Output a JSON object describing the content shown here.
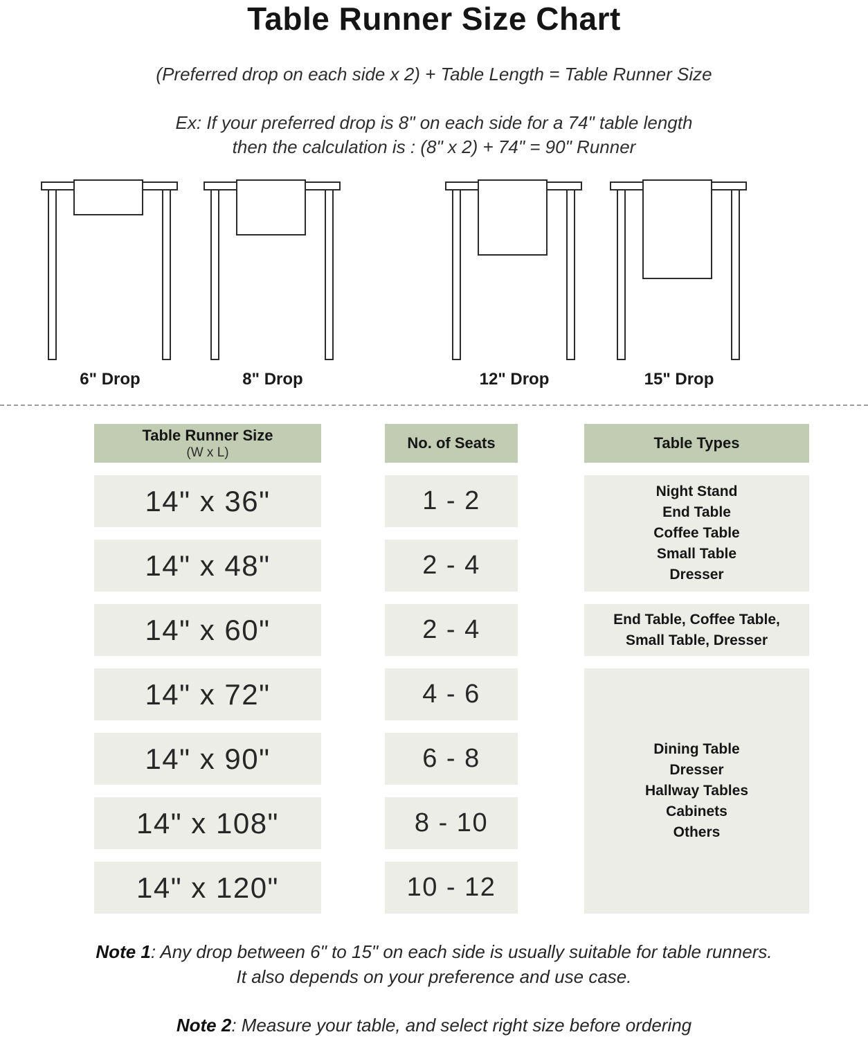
{
  "title": "Table Runner Size Chart",
  "formula": "(Preferred drop on each side x 2) + Table Length = Table Runner Size",
  "example": {
    "line1": "Ex: If your preferred drop is 8\" on each side for a 74\" table length",
    "line2": "then the calculation is : (8\" x 2) + 74\" = 90\" Runner"
  },
  "diagrams": [
    {
      "label": "6\" Drop"
    },
    {
      "label": "8\" Drop"
    },
    {
      "label": "12\" Drop"
    },
    {
      "label": "15\" Drop"
    }
  ],
  "table": {
    "columns": [
      {
        "header": "Table Runner Size",
        "subheader": "(W x L)"
      },
      {
        "header": "No. of Seats"
      },
      {
        "header": "Table Types"
      }
    ],
    "sizes": [
      "14\" x 36\"",
      "14\" x 48\"",
      "14\" x 60\"",
      "14\" x 72\"",
      "14\" x 90\"",
      "14\" x 108\"",
      "14\" x 120\""
    ],
    "seats": [
      "1 - 2",
      "2 - 4",
      "2 - 4",
      "4 - 6",
      "6 - 8",
      "8 - 10",
      "10 - 12"
    ],
    "types": [
      {
        "lines": [
          "Night Stand",
          "End Table",
          "Coffee Table",
          "Small Table",
          "Dresser"
        ]
      },
      {
        "lines": [
          "End Table, Coffee Table,",
          "Small Table, Dresser"
        ]
      },
      {
        "lines": [
          "Dining Table",
          "Dresser",
          "Hallway Tables",
          "Cabinets",
          "Others"
        ]
      }
    ]
  },
  "notes": {
    "note1_label": "Note 1",
    "note1_rest": ": Any drop between 6\" to 15\" on each side is usually suitable for table runners.",
    "note1_line2": "It also depends on your preference and use case.",
    "note2_label": "Note 2",
    "note2_rest": ": Measure your table, and select right size before ordering"
  },
  "colors": {
    "header_bg": "#c2ccb2",
    "cell_bg": "#ebede6",
    "text": "#1d1d1d",
    "divider": "#9b9b9b"
  }
}
